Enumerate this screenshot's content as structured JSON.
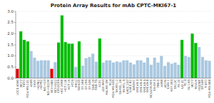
{
  "chart_data": {
    "type": "bar",
    "title": "Protein Array Results for mAb CPTC-MKI67-1",
    "categories": [
      "LCC3-4340",
      "MCF7",
      "T47D",
      "MDA-MB-231",
      "A549",
      "EKVX",
      "HOP62",
      "HOP92",
      "NCI-H23",
      "NCI-H322M",
      "NCI-H460",
      "NCI-H522",
      "COLO205",
      "HCC-2998",
      "HCT-116",
      "HCT-15",
      "HT29",
      "KM12",
      "SW-620",
      "SF-268",
      "SF-295",
      "SF-539",
      "SNB-19",
      "SNB-75",
      "U251",
      "LOX-IMVI",
      "MALME-3M",
      "M14",
      "MDA-MB-435",
      "SK-MEL-2",
      "SK-MEL-28",
      "SK-MEL-5",
      "UACC-257",
      "UACC-62",
      "IGROV1",
      "OVCAR-3",
      "OVCAR-4",
      "OVCAR-5",
      "OVCAR-8",
      "NCI/ADR-RES",
      "SK-OV-3",
      "786-0",
      "A498",
      "ACHN",
      "CAKI-1",
      "RXF-393",
      "SN12C",
      "TK-10",
      "UO-31",
      "PC-3",
      "DU-145",
      "MCF7",
      "MDA-N",
      "HS578T",
      "BT-549",
      "T-47D",
      "MDA-MB-468"
    ],
    "values": [
      0.42,
      2.1,
      1.72,
      1.65,
      1.22,
      0.92,
      0.78,
      0.8,
      0.8,
      0.8,
      0.42,
      0.72,
      1.6,
      2.82,
      1.62,
      1.55,
      1.55,
      0.5,
      1.65,
      0.56,
      0.9,
      0.95,
      1.1,
      0.74,
      1.78,
      0.7,
      0.8,
      0.8,
      0.7,
      0.75,
      0.72,
      0.8,
      0.8,
      0.7,
      0.62,
      0.8,
      0.8,
      0.7,
      0.92,
      0.6,
      0.92,
      0.7,
      1.0,
      0.55,
      0.72,
      0.65,
      0.7,
      0.6,
      1.72,
      1.0,
      0.95,
      2.0,
      1.58,
      1.4,
      0.95,
      0.8,
      0.78
    ],
    "colors": [
      "#dd0000",
      "#00bb00",
      "#00bb00",
      "#00bb00",
      "#aac8e0",
      "#aac8e0",
      "#aac8e0",
      "#aac8e0",
      "#aac8e0",
      "#aac8e0",
      "#dd0000",
      "#aac8e0",
      "#00bb00",
      "#00bb00",
      "#00bb00",
      "#00bb00",
      "#00bb00",
      "#aac8e0",
      "#00bb00",
      "#aac8e0",
      "#aac8e0",
      "#aac8e0",
      "#aac8e0",
      "#aac8e0",
      "#00bb00",
      "#aac8e0",
      "#aac8e0",
      "#aac8e0",
      "#aac8e0",
      "#aac8e0",
      "#aac8e0",
      "#aac8e0",
      "#aac8e0",
      "#aac8e0",
      "#aac8e0",
      "#aac8e0",
      "#aac8e0",
      "#aac8e0",
      "#aac8e0",
      "#aac8e0",
      "#aac8e0",
      "#aac8e0",
      "#aac8e0",
      "#aac8e0",
      "#aac8e0",
      "#aac8e0",
      "#aac8e0",
      "#aac8e0",
      "#00bb00",
      "#aac8e0",
      "#aac8e0",
      "#00bb00",
      "#00bb00",
      "#aac8e0",
      "#aac8e0",
      "#aac8e0",
      "#aac8e0"
    ],
    "ylim": [
      0.0,
      3.0
    ],
    "yticks": [
      {
        "value": 0.0,
        "label": "0.0"
      },
      0.5,
      {
        "value": 1.0,
        "label": "1.0"
      },
      1.5,
      {
        "value": 2.0,
        "label": "2.0"
      },
      2.5,
      {
        "value": 3.0,
        "label": "3.0"
      }
    ],
    "grid": true
  }
}
